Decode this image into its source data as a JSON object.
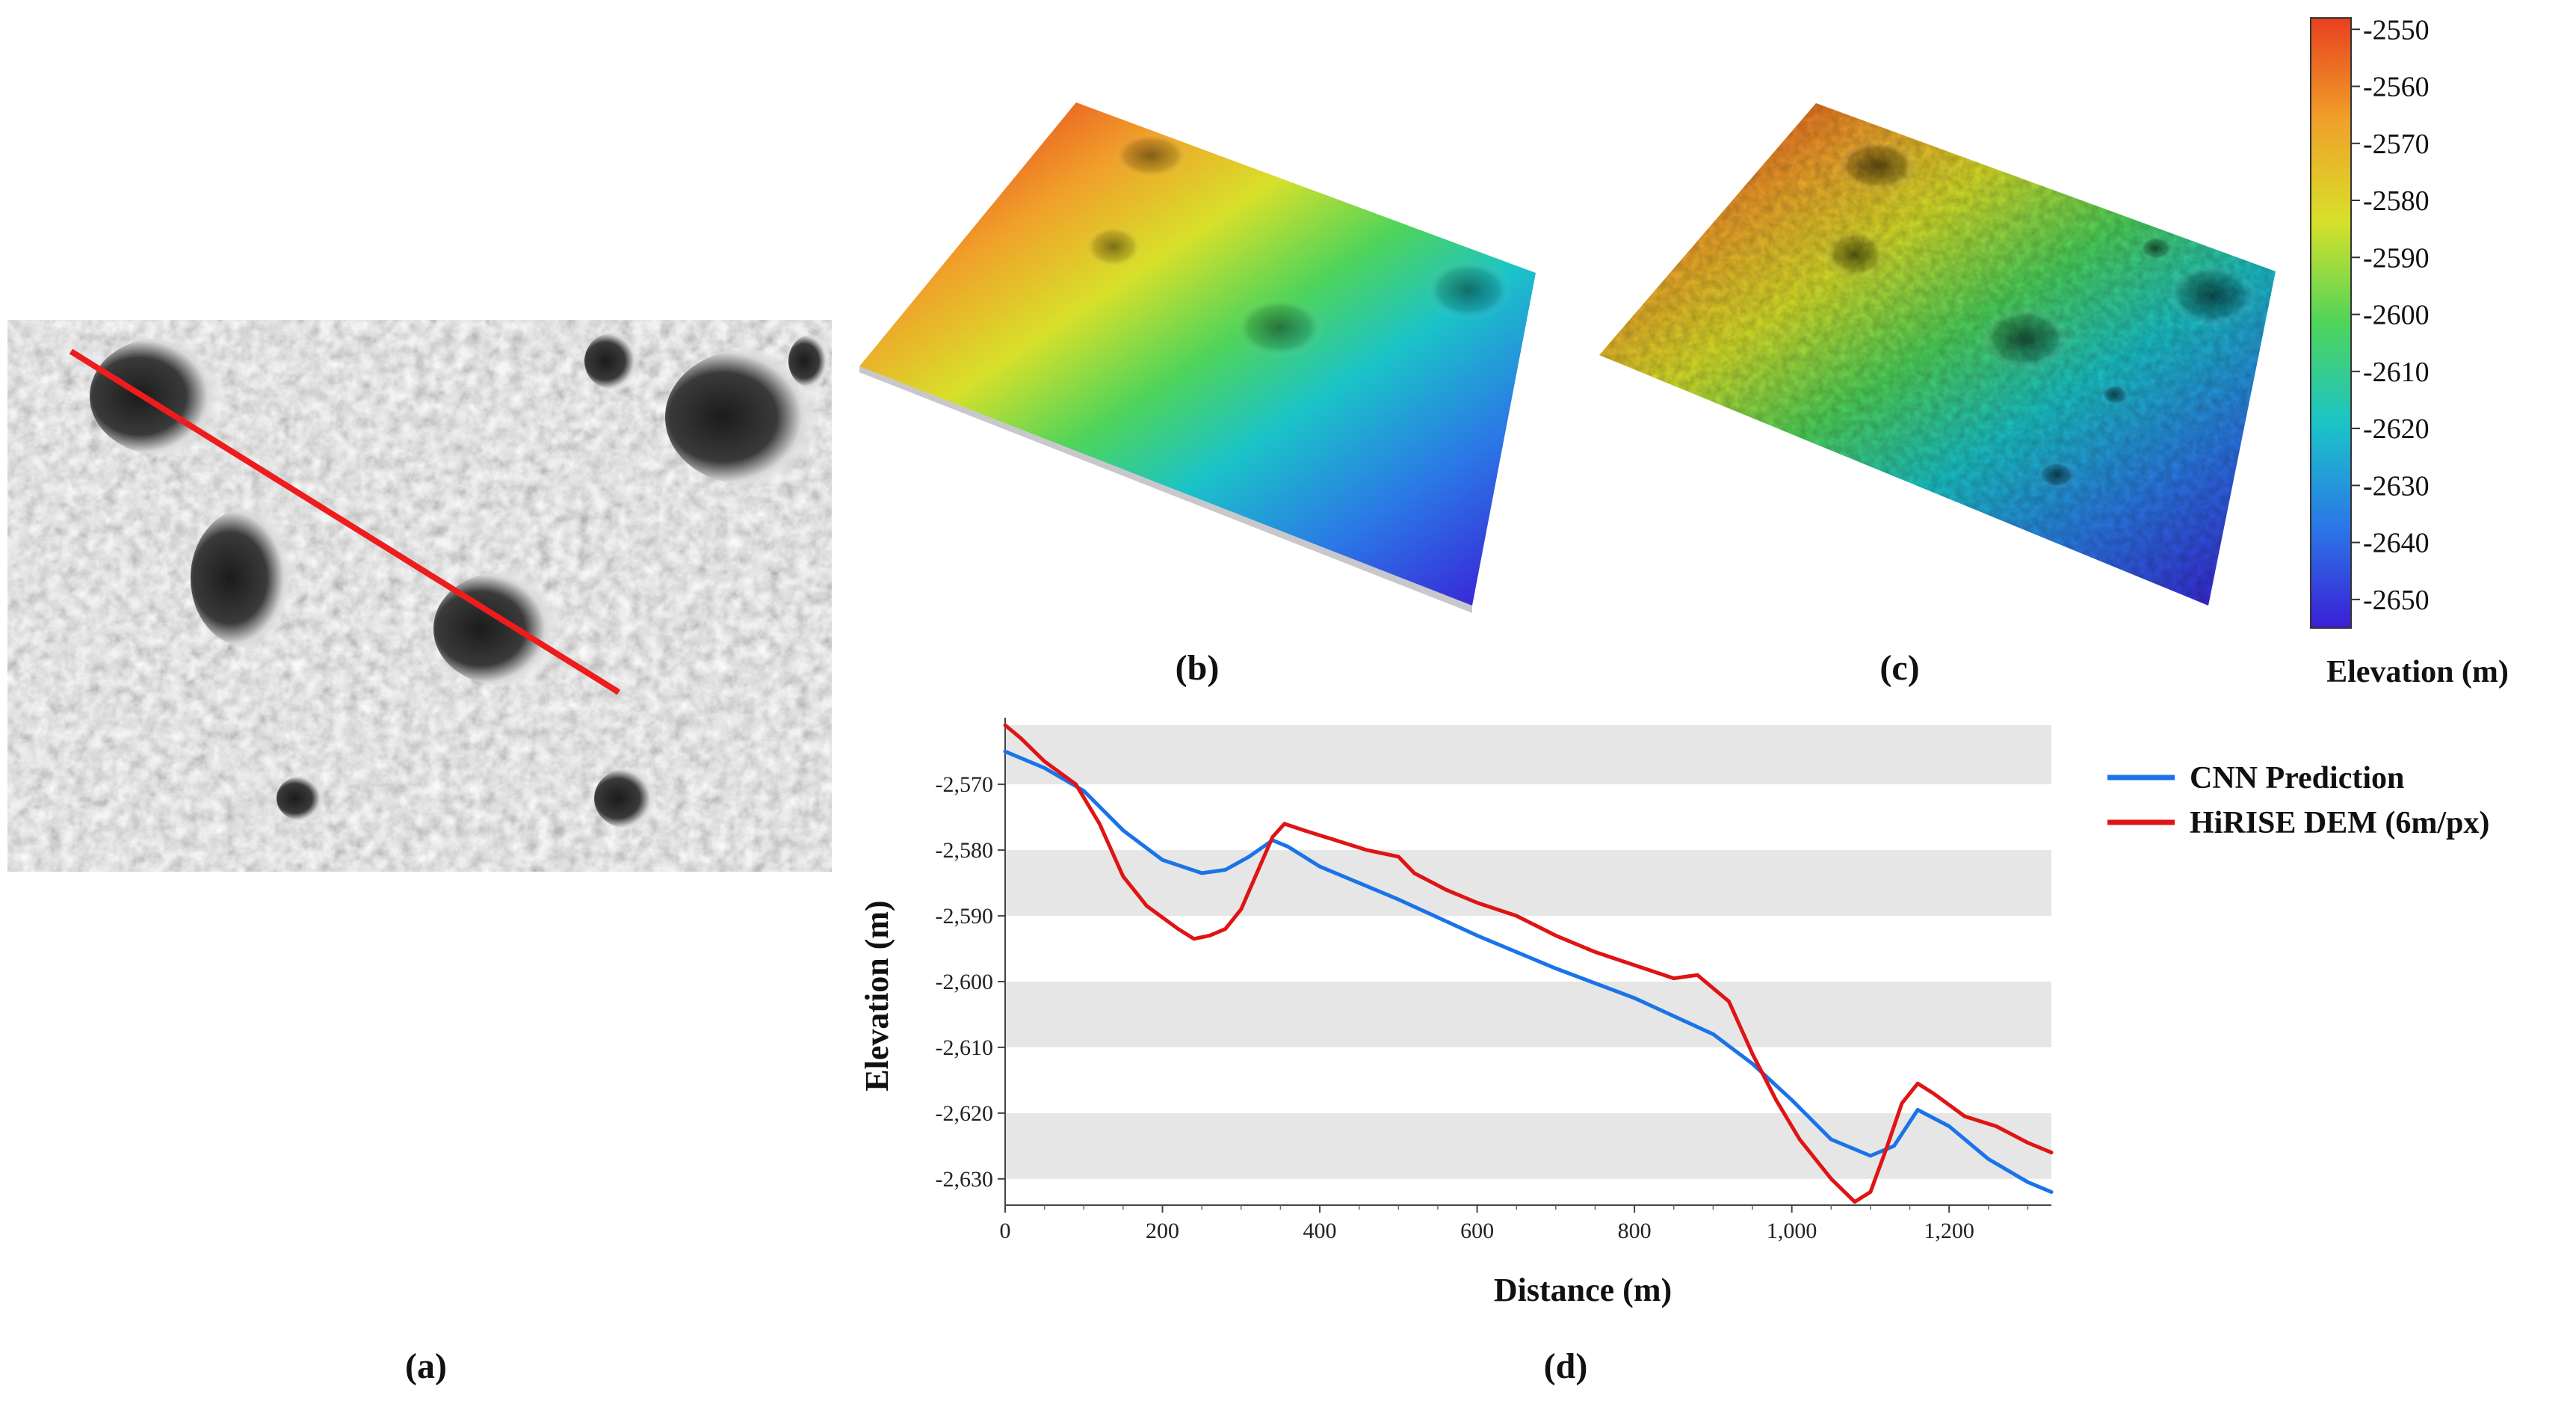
{
  "captions": {
    "a": "(a)",
    "b": "(b)",
    "c": "(c)",
    "d": "(d)"
  },
  "colorbar": {
    "title": "Elevation (m)",
    "ticks": [
      "-2550",
      "-2560",
      "-2570",
      "-2580",
      "-2590",
      "-2600",
      "-2610",
      "-2620",
      "-2630",
      "-2640",
      "-2650"
    ],
    "range": [
      -2655,
      -2548
    ],
    "colors": [
      "#3a1fd6",
      "#2b78e6",
      "#1bc3c8",
      "#4fd45a",
      "#d8e02a",
      "#f0a02a",
      "#e8401e"
    ]
  },
  "profile_line_color": "#ee1c1c",
  "chart_data": {
    "type": "line",
    "xlabel": "Distance (m)",
    "ylabel": "Elevation (m)",
    "xlim": [
      0,
      1330
    ],
    "ylim": [
      -2634,
      -2561
    ],
    "x_ticks": [
      0,
      200,
      400,
      600,
      800,
      1000,
      1200
    ],
    "x_tick_labels": [
      "0",
      "200",
      "400",
      "600",
      "800",
      "1,000",
      "1,200"
    ],
    "y_ticks": [
      -2570,
      -2580,
      -2590,
      -2600,
      -2610,
      -2620,
      -2630
    ],
    "y_tick_labels": [
      "-2,570",
      "-2,580",
      "-2,590",
      "-2,600",
      "-2,610",
      "-2,620",
      "-2,630"
    ],
    "grid_bands": [
      [
        -2570,
        -2561
      ],
      [
        -2590,
        -2580
      ],
      [
        -2610,
        -2600
      ],
      [
        -2630,
        -2620
      ]
    ],
    "legend_position": "right",
    "series": [
      {
        "name": "CNN Prediction",
        "color": "#1a73e8",
        "x": [
          0,
          50,
          100,
          150,
          200,
          250,
          280,
          310,
          340,
          360,
          400,
          500,
          600,
          700,
          800,
          900,
          950,
          1000,
          1050,
          1100,
          1130,
          1160,
          1200,
          1250,
          1300,
          1330
        ],
        "y": [
          -2565,
          -2567.5,
          -2571,
          -2577,
          -2581.5,
          -2583.5,
          -2583,
          -2581,
          -2578.5,
          -2579.5,
          -2582.5,
          -2587.5,
          -2593,
          -2598,
          -2602.5,
          -2608,
          -2612.5,
          -2618,
          -2624,
          -2626.5,
          -2625,
          -2619.5,
          -2622,
          -2627,
          -2630.5,
          -2632
        ]
      },
      {
        "name": "HiRISE DEM (6m/px)",
        "color": "#e01414",
        "x": [
          0,
          20,
          50,
          90,
          120,
          150,
          180,
          220,
          240,
          260,
          280,
          300,
          320,
          340,
          355,
          380,
          420,
          460,
          500,
          520,
          560,
          600,
          650,
          700,
          750,
          800,
          850,
          880,
          920,
          950,
          980,
          1010,
          1050,
          1080,
          1100,
          1120,
          1140,
          1160,
          1180,
          1220,
          1260,
          1300,
          1330
        ],
        "y": [
          -2561,
          -2563,
          -2566.5,
          -2570,
          -2576,
          -2584,
          -2588.5,
          -2592,
          -2593.5,
          -2593,
          -2592,
          -2589,
          -2583.5,
          -2578,
          -2576,
          -2577,
          -2578.5,
          -2580,
          -2581,
          -2583.5,
          -2586,
          -2588,
          -2590,
          -2593,
          -2595.5,
          -2597.5,
          -2599.5,
          -2599,
          -2603,
          -2611,
          -2618,
          -2624,
          -2630,
          -2633.5,
          -2632,
          -2625.5,
          -2618.5,
          -2615.5,
          -2617,
          -2620.5,
          -2622,
          -2624.5,
          -2626
        ]
      }
    ]
  }
}
